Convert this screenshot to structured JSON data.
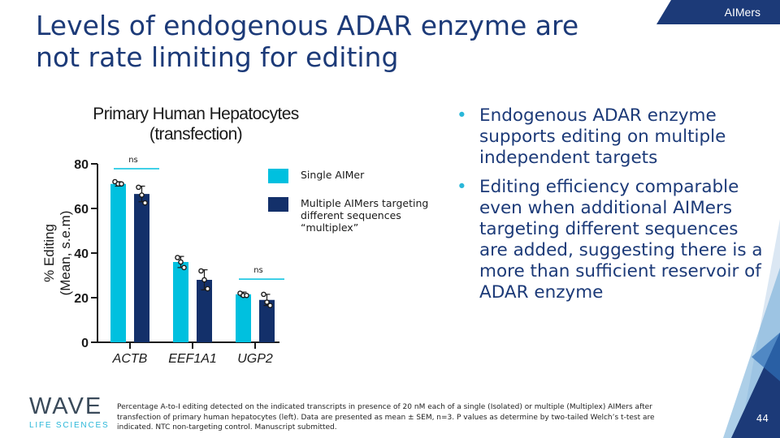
{
  "brand_tag": "AIMers",
  "title": "Levels of endogenous ADAR enzyme are not rate limiting for editing",
  "chart_data": {
    "type": "bar",
    "title": "Primary Human Hepatocytes (transfection)",
    "title_lines": [
      "Primary Human Hepatocytes",
      "(transfection)"
    ],
    "ylabel_lines": [
      "% Editing",
      "(Mean, s.e.m)"
    ],
    "xlabel": "",
    "categories": [
      "ACTB",
      "EEF1A1",
      "UGP2"
    ],
    "ylim": [
      0,
      80
    ],
    "yticks": [
      0,
      20,
      40,
      60,
      80
    ],
    "series": [
      {
        "name": "Single AIMer",
        "color": "#00c0df",
        "values": [
          71,
          36,
          21.5
        ],
        "error": [
          1,
          2.5,
          1
        ],
        "points": [
          [
            72,
            71,
            71
          ],
          [
            38,
            36,
            33.5
          ],
          [
            22,
            21,
            21
          ]
        ]
      },
      {
        "name": "Multiple AIMers targeting different sequences “multiplex”",
        "color": "#13306a",
        "values": [
          66.5,
          28,
          19
        ],
        "error": [
          3.5,
          4.5,
          2.5
        ],
        "points": [
          [
            69.5,
            66,
            62.5
          ],
          [
            32,
            28,
            24
          ],
          [
            21.5,
            18,
            16.5
          ]
        ]
      }
    ],
    "annotations": [
      {
        "category": "ACTB",
        "text": "ns"
      },
      {
        "category": "UGP2",
        "text": "ns"
      }
    ],
    "legend_position": "right"
  },
  "legend": {
    "single": "Single AIMer",
    "multiple": "Multiple AIMers targeting different sequences “multiplex”"
  },
  "bullets": [
    "Endogenous ADAR enzyme supports editing on multiple independent targets",
    "Editing efficiency comparable even when additional AIMers targeting different sequences are added, suggesting there is a more than sufficient reservoir of ADAR enzyme"
  ],
  "bullet_glyph": "•",
  "footnote": "Percentage A-to-I editing detected on the indicated transcripts in presence of 20 nM each of a single (Isolated) or multiple (Multiplex) AIMers after transfection of primary human hepatocytes (left). Data are presented as mean ± SEM, n=3. P values as determine by two-tailed Welch’s t-test are indicated. NTC non-targeting control.  Manuscript submitted.",
  "logo": {
    "word": "WAVE",
    "sub": "LIFE SCIENCES"
  },
  "page_number": "44",
  "colors": {
    "navy": "#1c3a78",
    "cyan": "#00c0df",
    "dark_bar": "#13306a"
  }
}
